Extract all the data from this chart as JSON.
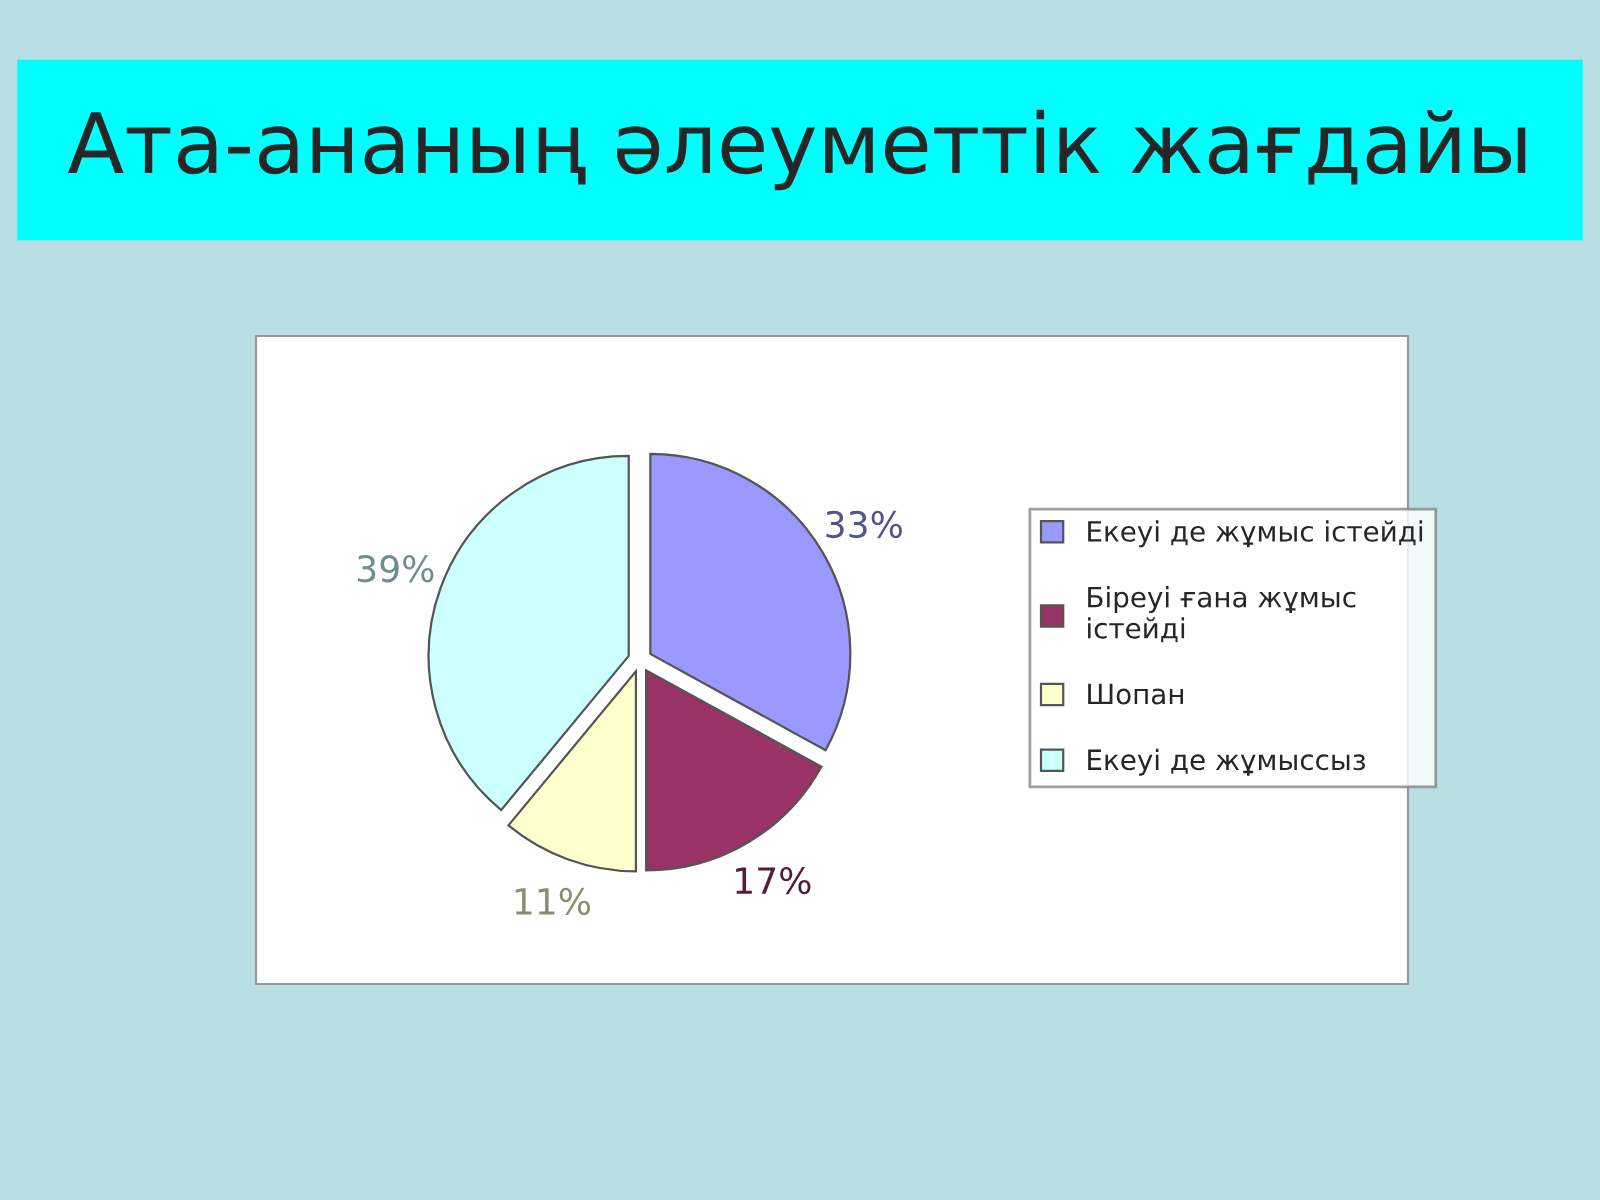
{
  "chart_data": {
    "type": "pie",
    "title": "Ата-ананың әлеуметтік жағдайы",
    "categories": [
      "Екеуі де жұмыс істейді",
      "Біреуі ғана жұмыс\nістейді",
      "Шопан",
      "Екеуі де жұмыссыз"
    ],
    "values": [
      33,
      17,
      11,
      39
    ],
    "value_labels": [
      "33%",
      "17%",
      "11%",
      "39%"
    ],
    "colors": [
      "#9999ff",
      "#993366",
      "#ffffcc",
      "#ccffff"
    ],
    "legend": "right"
  }
}
